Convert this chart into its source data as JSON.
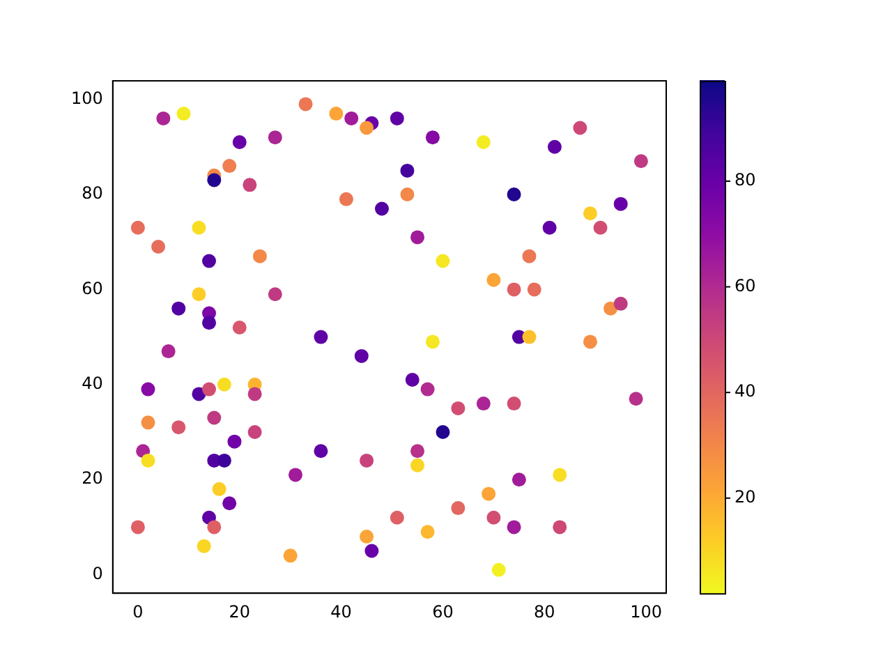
{
  "chart_data": {
    "type": "scatter",
    "marker": "circle",
    "xlim": [
      -4.95,
      103.95
    ],
    "ylim": [
      -3.9,
      103.9
    ],
    "xticks": [
      0,
      20,
      40,
      60,
      80,
      100
    ],
    "yticks": [
      0,
      20,
      40,
      60,
      80,
      100
    ],
    "clim": [
      2,
      99
    ],
    "cticks": [
      20,
      40,
      60,
      80
    ],
    "grid": false,
    "legend": false,
    "x": [
      5,
      9,
      33,
      39,
      42,
      46,
      45,
      20,
      27,
      18,
      15,
      15,
      22,
      41,
      48,
      0,
      12,
      4,
      24,
      14,
      12,
      27,
      8,
      14,
      14,
      20,
      36,
      51,
      58,
      68,
      87,
      82,
      99,
      53,
      53,
      74,
      95,
      89,
      91,
      81,
      55,
      60,
      77,
      70,
      74,
      78,
      93,
      95,
      58,
      75,
      77,
      89,
      54,
      57,
      63,
      68,
      74,
      98,
      60,
      55,
      55,
      75,
      83,
      69,
      51,
      63,
      70,
      74,
      83,
      57,
      71,
      44,
      6,
      2,
      12,
      14,
      17,
      23,
      23,
      2,
      8,
      15,
      23,
      19,
      1,
      2,
      15,
      17,
      36,
      45,
      31,
      16,
      18,
      14,
      15,
      0,
      13,
      30,
      45,
      46
    ],
    "values": [
      96,
      97,
      99,
      97,
      96,
      95,
      94,
      91,
      92,
      86,
      84,
      83,
      82,
      79,
      77,
      73,
      73,
      69,
      67,
      66,
      59,
      59,
      56,
      55,
      53,
      52,
      50,
      96,
      92,
      91,
      94,
      90,
      87,
      85,
      80,
      80,
      78,
      76,
      73,
      73,
      71,
      66,
      67,
      62,
      60,
      60,
      56,
      57,
      49,
      50,
      50,
      49,
      41,
      39,
      35,
      36,
      36,
      37,
      30,
      26,
      23,
      20,
      21,
      17,
      12,
      14,
      12,
      10,
      10,
      9,
      1,
      46,
      47,
      39,
      38,
      39,
      40,
      40,
      38,
      32,
      31,
      33,
      30,
      28,
      26,
      24,
      24,
      24,
      26,
      24,
      21,
      18,
      15,
      12,
      10,
      10,
      6,
      4,
      8,
      5
    ],
    "cvalues": [
      62,
      5,
      35,
      22,
      65,
      80,
      25,
      80,
      62,
      33,
      30,
      95,
      52,
      35,
      85,
      38,
      8,
      38,
      30,
      85,
      12,
      55,
      85,
      75,
      85,
      45,
      82,
      82,
      72,
      5,
      50,
      82,
      55,
      88,
      30,
      95,
      80,
      12,
      48,
      82,
      65,
      6,
      35,
      22,
      42,
      38,
      28,
      55,
      6,
      85,
      15,
      28,
      82,
      60,
      48,
      62,
      48,
      58,
      95,
      58,
      10,
      65,
      8,
      22,
      42,
      40,
      48,
      65,
      50,
      17,
      4,
      82,
      62,
      72,
      85,
      48,
      8,
      18,
      55,
      28,
      45,
      55,
      52,
      78,
      62,
      8,
      85,
      90,
      82,
      52,
      65,
      12,
      78,
      82,
      42,
      42,
      10,
      22,
      22,
      80
    ]
  }
}
